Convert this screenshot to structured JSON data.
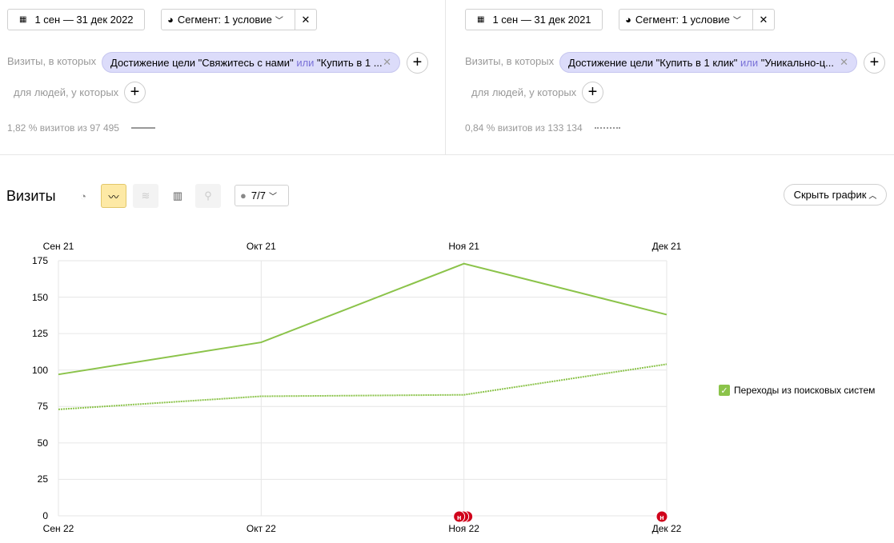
{
  "left": {
    "date": "1 сен — 31 дек 2022",
    "segment": "Сегмент: 1 условие",
    "visits_label": "Визиты, в которых",
    "chip_a": "Достижение цели \"Свяжитесь с нами\"",
    "chip_or": "или",
    "chip_b": "\"Купить в 1 ...",
    "people_label": "для людей, у которых",
    "summary": "1,82 % визитов из 97 495"
  },
  "right": {
    "date": "1 сен — 31 дек 2021",
    "segment": "Сегмент: 1 условие",
    "visits_label": "Визиты, в которых",
    "chip_a": "Достижение цели \"Купить в 1 клик\"",
    "chip_or": "или",
    "chip_b": "\"Уникально-ц...",
    "people_label": "для людей, у которых",
    "summary": "0,84 % визитов из 133 134"
  },
  "toolbar": {
    "title": "Визиты",
    "annotations": "7/7",
    "hide_chart": "Скрыть график"
  },
  "legend": {
    "label": "Переходы из поисковых систем",
    "color": "#8bc34a"
  },
  "chart_data": {
    "type": "line",
    "top_ticks": [
      "Сен 21",
      "Окт 21",
      "Ноя 21",
      "Дек 21"
    ],
    "bottom_ticks": [
      "Сен 22",
      "Окт 22",
      "Ноя 22",
      "Дек 22"
    ],
    "y_ticks": [
      "0",
      "25",
      "50",
      "75",
      "100",
      "125",
      "150",
      "175"
    ],
    "ylim": [
      0,
      175
    ],
    "grid": true,
    "series": [
      {
        "style": "solid",
        "period": "2022",
        "values": [
          97,
          119,
          173,
          138
        ]
      },
      {
        "style": "dotted",
        "period": "2021",
        "values": [
          73,
          82,
          83,
          104
        ]
      }
    ],
    "annotation_markers": [
      {
        "at": "Ноя 22",
        "label": "н",
        "count": 3
      },
      {
        "at": "Дек 22",
        "label": "н",
        "count": 1
      }
    ]
  }
}
